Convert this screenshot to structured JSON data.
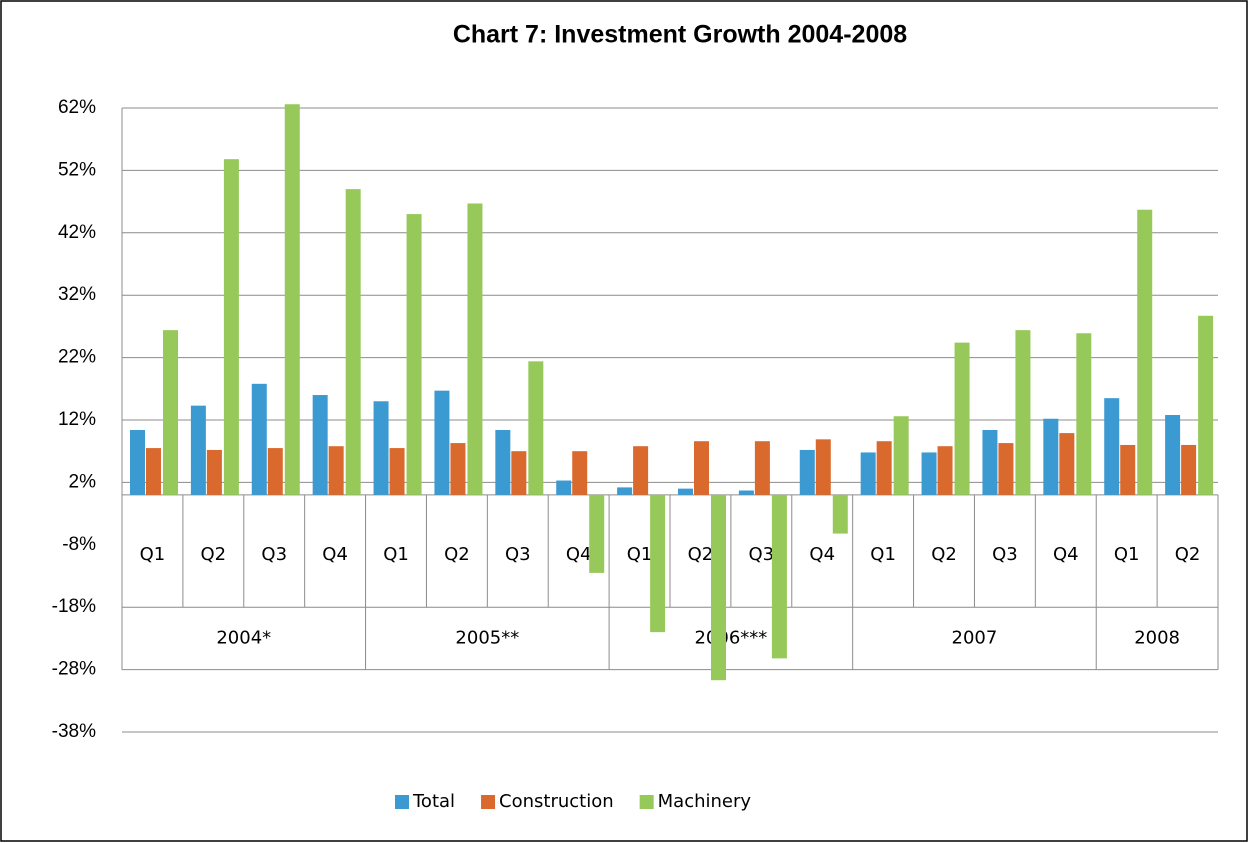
{
  "chart_data": {
    "type": "bar",
    "title": "Chart 7: Investment Growth 2004-2008",
    "groups": [
      {
        "name": "2004*",
        "categories": [
          "Q1",
          "Q2",
          "Q3",
          "Q4"
        ]
      },
      {
        "name": "2005**",
        "categories": [
          "Q1",
          "Q2",
          "Q3",
          "Q4"
        ]
      },
      {
        "name": "2006***",
        "categories": [
          "Q1",
          "Q2",
          "Q3",
          "Q4"
        ]
      },
      {
        "name": "2007",
        "categories": [
          "Q1",
          "Q2",
          "Q3",
          "Q4"
        ]
      },
      {
        "name": "2008",
        "categories": [
          "Q1",
          "Q2"
        ]
      }
    ],
    "series": [
      {
        "name": "Total",
        "color": "#3c9ad2",
        "values": [
          10.4,
          14.3,
          17.8,
          16,
          15,
          16.7,
          10.4,
          2.3,
          1.2,
          1,
          0.7,
          7.2,
          6.8,
          6.8,
          10.4,
          12.2,
          15.5,
          12.8
        ]
      },
      {
        "name": "Construction",
        "color": "#d9692c",
        "values": [
          7.5,
          7.2,
          7.5,
          7.8,
          7.5,
          8.3,
          7,
          7,
          7.8,
          8.6,
          8.6,
          8.9,
          8.6,
          7.8,
          8.3,
          9.9,
          8,
          8
        ]
      },
      {
        "name": "Machinery",
        "color": "#96c95a",
        "values": [
          26.4,
          53.8,
          62.6,
          49,
          45,
          46.7,
          21.4,
          -12.5,
          -22,
          -29.7,
          -26.2,
          -6.2,
          12.6,
          24.4,
          26.4,
          25.9,
          45.7,
          28.7
        ]
      }
    ],
    "ylim": [
      -38,
      62
    ],
    "yticks": [
      {
        "value": -38,
        "label": "-38%"
      },
      {
        "value": -28,
        "label": "-28%"
      },
      {
        "value": -18,
        "label": "-18%"
      },
      {
        "value": -8,
        "label": "-8%"
      },
      {
        "value": 2,
        "label": "2%"
      },
      {
        "value": 12,
        "label": "12%"
      },
      {
        "value": 22,
        "label": "22%"
      },
      {
        "value": 32,
        "label": "32%"
      },
      {
        "value": 42,
        "label": "42%"
      },
      {
        "value": 52,
        "label": "52%"
      },
      {
        "value": 62,
        "label": "62%"
      }
    ],
    "grid": true,
    "legend": "bottom"
  }
}
